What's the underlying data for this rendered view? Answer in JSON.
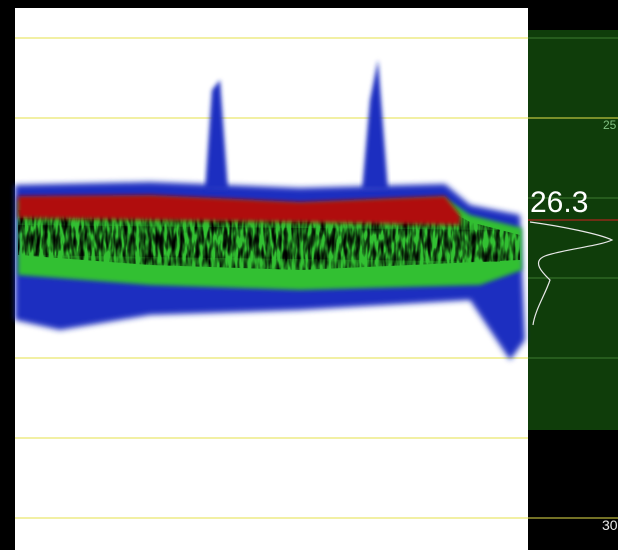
{
  "depth_readout": "26.3",
  "scale_labels": [
    "25",
    "30"
  ]
}
